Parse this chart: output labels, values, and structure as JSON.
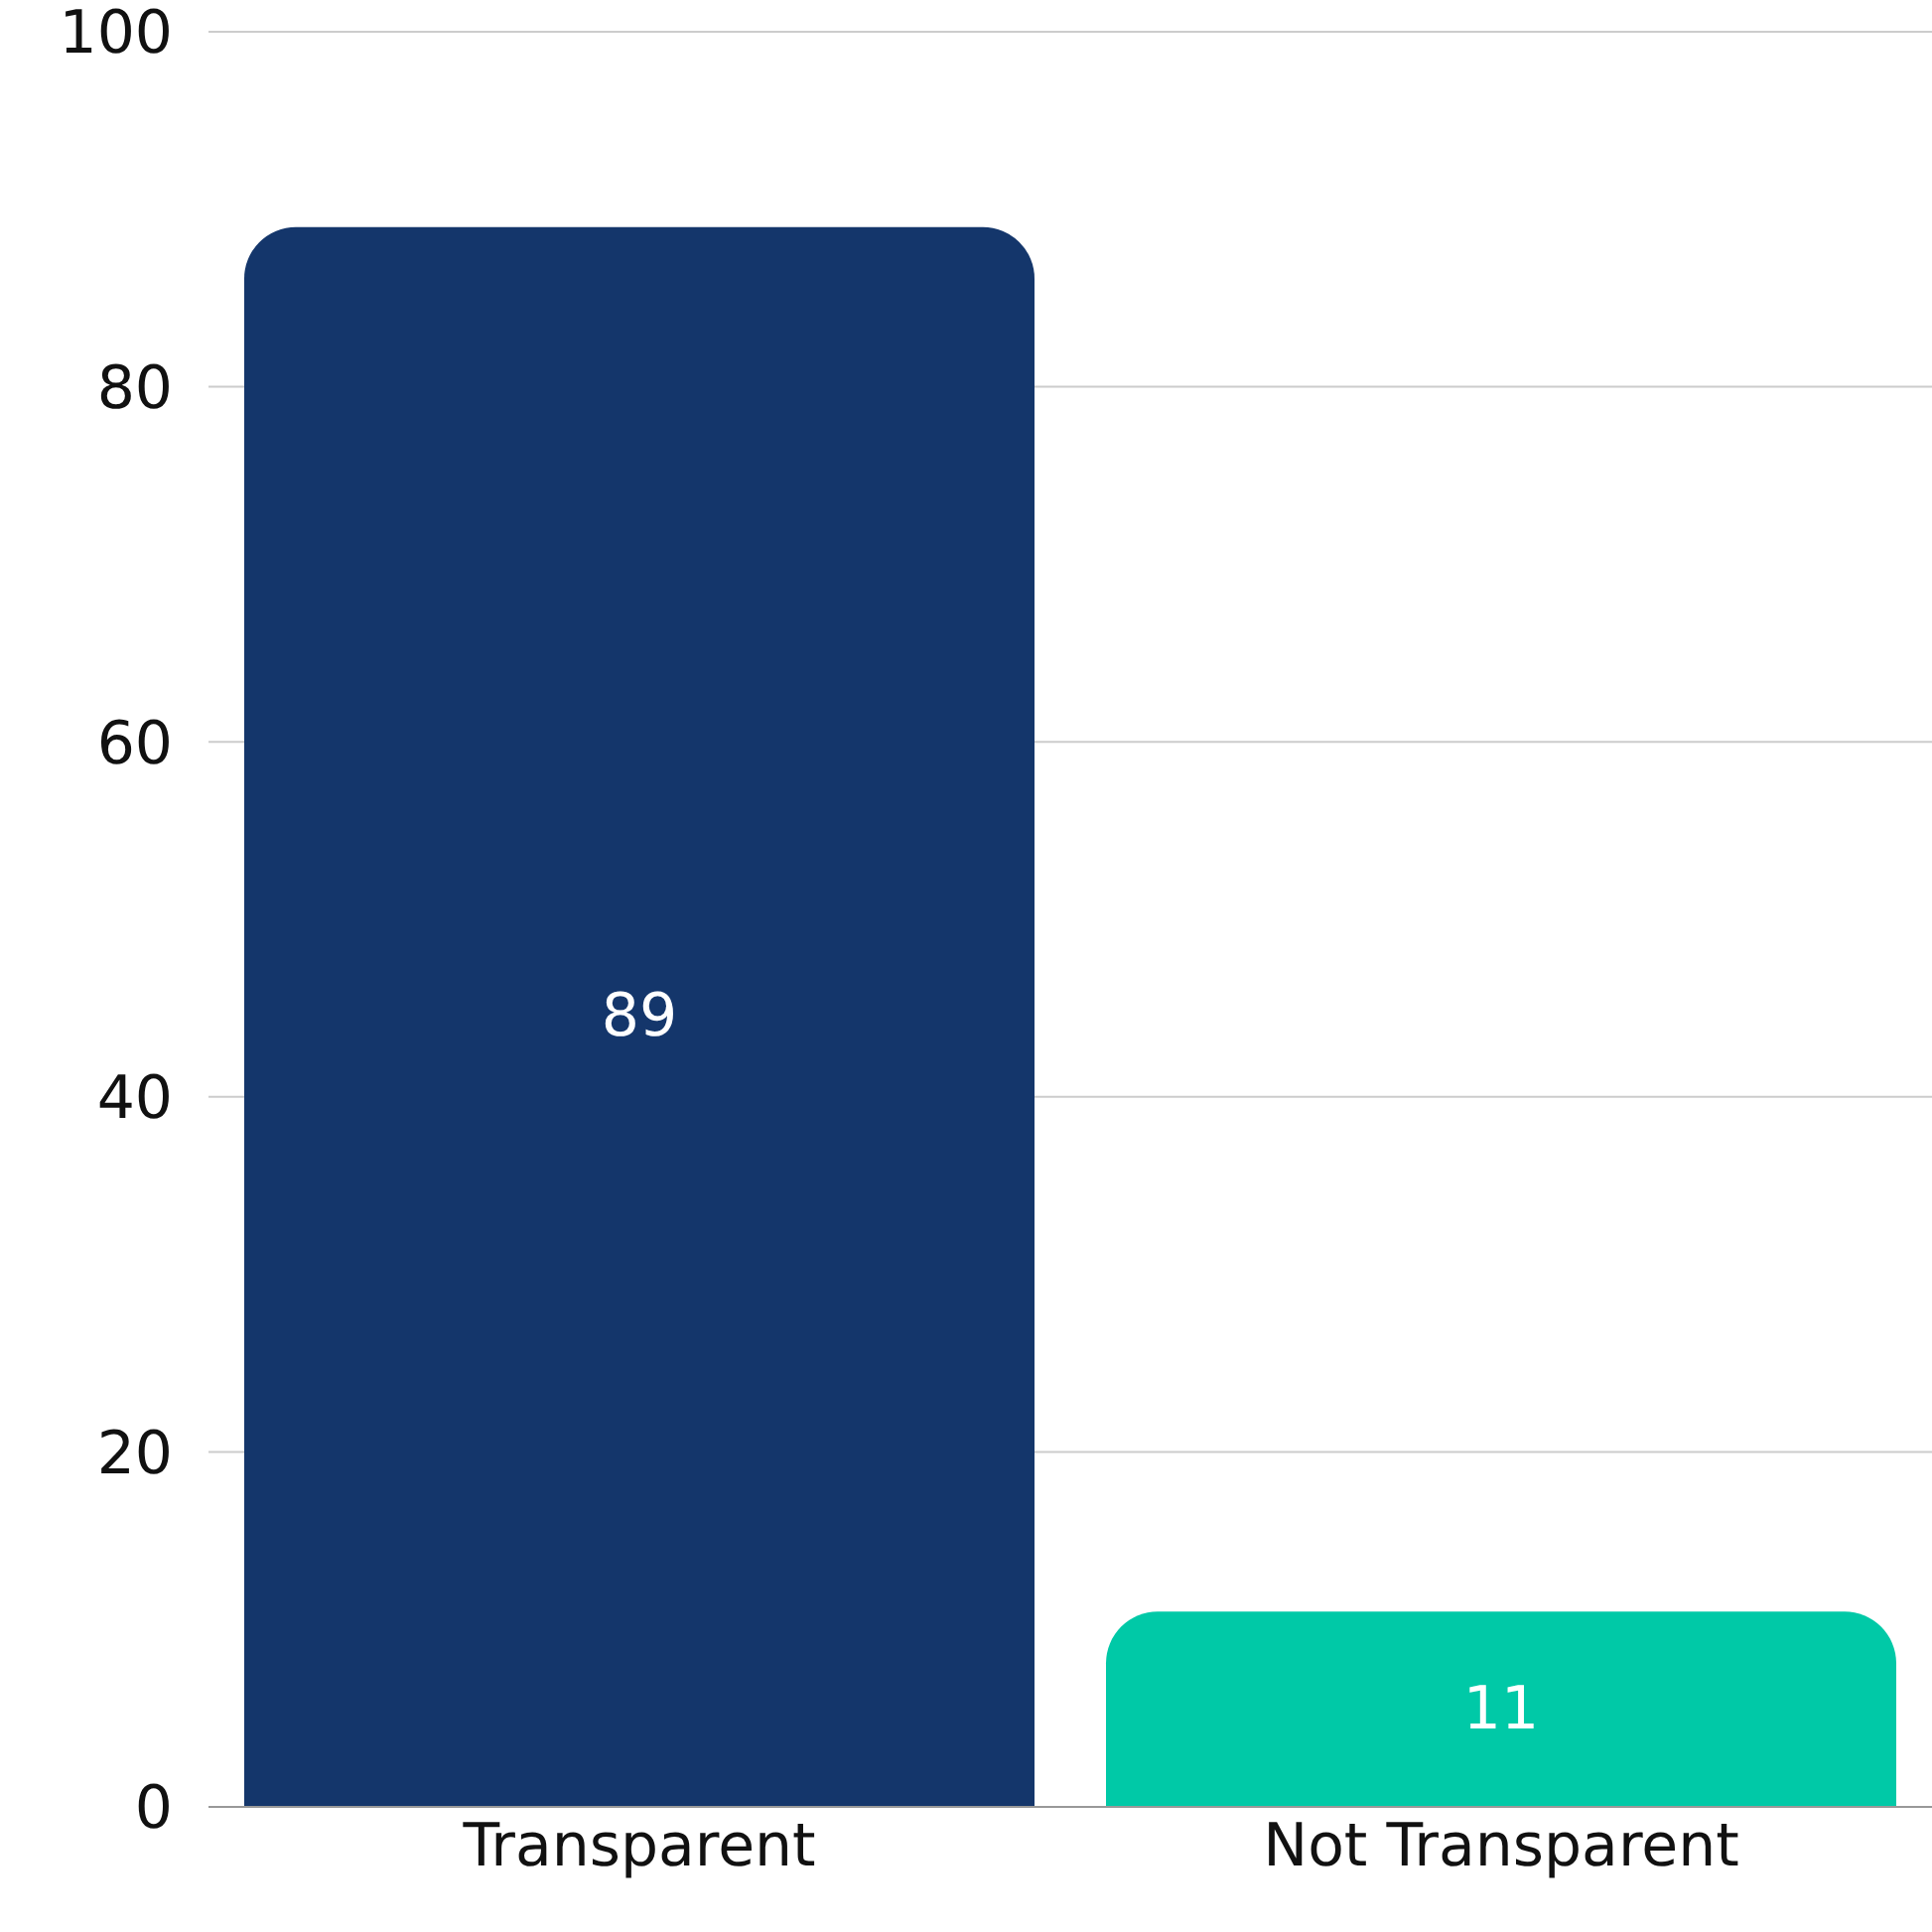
{
  "chart_data": {
    "type": "bar",
    "categories": [
      "Transparent",
      "Not Transparent"
    ],
    "values": [
      89,
      11
    ],
    "colors": [
      "#14366b",
      "#00c9a7"
    ],
    "ylim": [
      0,
      100
    ],
    "yticks": [
      0,
      20,
      40,
      60,
      80,
      100
    ],
    "grid": "y",
    "data_labels": true
  }
}
